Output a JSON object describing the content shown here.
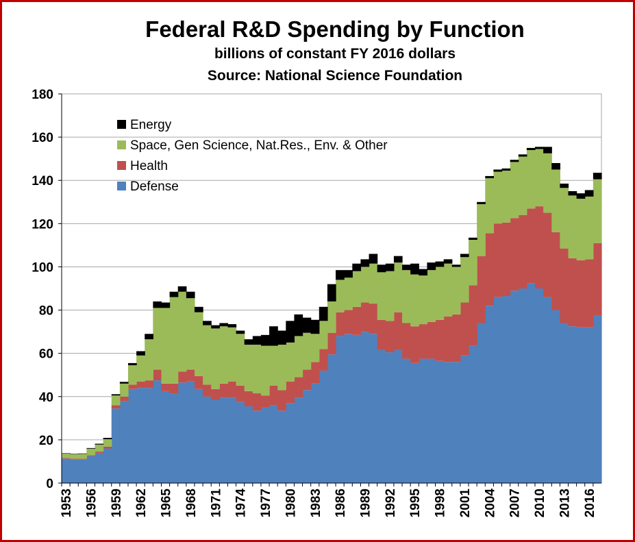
{
  "chart_data": {
    "type": "area",
    "title": "Federal R&D Spending by Function",
    "subtitle_1": "billions of constant FY 2016 dollars",
    "subtitle_2": "Source: National Science Foundation",
    "xlabel": "",
    "ylabel": "",
    "ylim": [
      0,
      180
    ],
    "yticks": [
      0,
      20,
      40,
      60,
      80,
      100,
      120,
      140,
      160,
      180
    ],
    "x": [
      1953,
      1954,
      1955,
      1956,
      1957,
      1958,
      1959,
      1960,
      1961,
      1962,
      1963,
      1964,
      1965,
      1966,
      1967,
      1968,
      1969,
      1970,
      1971,
      1972,
      1973,
      1974,
      1975,
      1976,
      1977,
      1978,
      1979,
      1980,
      1981,
      1982,
      1983,
      1984,
      1985,
      1986,
      1987,
      1988,
      1989,
      1990,
      1991,
      1992,
      1993,
      1994,
      1995,
      1996,
      1997,
      1998,
      1999,
      2000,
      2001,
      2002,
      2003,
      2004,
      2005,
      2006,
      2007,
      2008,
      2009,
      2010,
      2011,
      2012,
      2013,
      2014,
      2015,
      2016,
      2017
    ],
    "xtick_labels": [
      "1953",
      "1956",
      "1959",
      "1962",
      "1965",
      "1968",
      "1971",
      "1974",
      "1977",
      "1980",
      "1983",
      "1986",
      "1989",
      "1992",
      "1995",
      "1998",
      "2001",
      "2004",
      "2007",
      "2010",
      "2013",
      "2016"
    ],
    "series": [
      {
        "name": "Defense",
        "color": "#4f81bd",
        "values": [
          11.3,
          11.0,
          11.0,
          12.5,
          14.0,
          16.0,
          34.5,
          38.0,
          43.5,
          44.0,
          44.0,
          47.5,
          42.5,
          41.5,
          46.5,
          47.0,
          43.5,
          40.0,
          38.5,
          39.5,
          39.5,
          37.5,
          35.5,
          33.5,
          35.0,
          36.0,
          33.5,
          37.0,
          39.5,
          43.0,
          46.0,
          52.0,
          59.5,
          68.0,
          69.0,
          68.5,
          70.0,
          69.0,
          61.5,
          60.5,
          61.5,
          57.5,
          55.5,
          57.5,
          57.5,
          56.5,
          56.0,
          56.0,
          59.0,
          63.5,
          74.0,
          82.0,
          86.0,
          86.5,
          89.0,
          90.0,
          92.5,
          90.0,
          86.0,
          80.0,
          74.0,
          72.5,
          72.0,
          72.0,
          77.5
        ]
      },
      {
        "name": "Health",
        "color": "#c0504d",
        "values": [
          0.3,
          0.3,
          0.3,
          0.4,
          0.6,
          0.8,
          1.5,
          2.0,
          2.0,
          3.0,
          3.5,
          5.0,
          3.5,
          4.5,
          5.0,
          5.5,
          6.0,
          5.5,
          5.0,
          6.5,
          7.5,
          7.5,
          7.0,
          8.0,
          5.5,
          9.0,
          9.5,
          10.0,
          9.5,
          9.5,
          10.0,
          10.0,
          10.0,
          11.0,
          11.0,
          13.0,
          13.5,
          14.0,
          14.0,
          14.5,
          17.5,
          16.5,
          17.0,
          16.0,
          17.0,
          19.0,
          21.0,
          22.0,
          24.5,
          28.0,
          31.0,
          33.5,
          34.0,
          34.0,
          33.5,
          34.0,
          34.5,
          38.0,
          39.0,
          36.0,
          34.5,
          31.5,
          31.0,
          31.5,
          33.5
        ]
      },
      {
        "name": "Space, Gen Science, Nat.Res., Env. & Other",
        "color": "#9bbb59",
        "values": [
          2.0,
          2.0,
          2.2,
          3.0,
          3.2,
          3.5,
          4.5,
          6.0,
          9.0,
          12.0,
          19.0,
          28.5,
          35.0,
          40.0,
          37.0,
          33.0,
          29.5,
          27.5,
          28.0,
          26.5,
          25.0,
          24.0,
          21.5,
          22.5,
          23.0,
          18.5,
          21.0,
          18.0,
          19.0,
          17.0,
          13.0,
          13.0,
          14.5,
          15.0,
          15.0,
          16.5,
          16.5,
          18.5,
          22.0,
          23.0,
          23.0,
          24.5,
          24.0,
          22.5,
          24.0,
          24.5,
          24.5,
          22.0,
          21.0,
          21.0,
          24.0,
          25.5,
          24.0,
          24.0,
          26.0,
          27.0,
          27.0,
          26.5,
          27.5,
          29.0,
          28.0,
          29.0,
          28.5,
          29.0,
          29.5
        ]
      },
      {
        "name": "Energy",
        "color": "#000000",
        "values": [
          0.2,
          0.2,
          0.2,
          0.3,
          0.4,
          0.6,
          0.6,
          0.8,
          1.0,
          2.0,
          2.5,
          3.0,
          2.5,
          2.5,
          2.5,
          3.0,
          2.5,
          2.0,
          1.5,
          1.5,
          1.5,
          1.5,
          2.5,
          4.0,
          5.0,
          9.0,
          6.5,
          10.0,
          10.0,
          7.0,
          6.5,
          6.5,
          8.0,
          4.5,
          3.5,
          3.5,
          3.5,
          4.5,
          3.5,
          3.5,
          3.0,
          2.5,
          5.0,
          3.0,
          3.5,
          2.5,
          2.0,
          1.0,
          1.5,
          1.0,
          1.0,
          1.0,
          1.0,
          1.0,
          1.0,
          1.0,
          1.0,
          1.0,
          3.0,
          3.0,
          2.0,
          2.0,
          2.5,
          3.0,
          3.0
        ]
      }
    ],
    "legend": {
      "placement": "top-left",
      "entries": [
        "Energy",
        "Space, Gen Science, Nat.Res., Env. & Other",
        "Health",
        "Defense"
      ]
    },
    "grid": "horizontal"
  },
  "colors": {
    "border": "#c00000",
    "defense": "#4f81bd",
    "health": "#c0504d",
    "space": "#9bbb59",
    "energy": "#000000",
    "gridline": "#a6a6a6"
  }
}
